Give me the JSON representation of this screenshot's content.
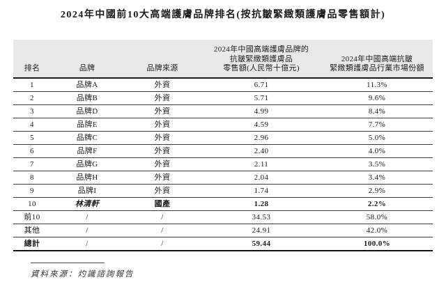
{
  "title": "2024年中國前10大高端護膚品牌排名(按抗皺緊緻類護膚品零售額計)",
  "table": {
    "headers": {
      "rank": "排名",
      "brand": "品牌",
      "origin": "品牌來源",
      "value": "2024年中國高端護膚品牌的\n抗皺緊緻類護膚品\n零售額(人民幣十億元)",
      "share": "2024年中國高端抗皺\n緊緻類護膚品行業市場份額"
    },
    "rows": [
      {
        "rank": "1",
        "brand": "品牌A",
        "origin": "外資",
        "value": "6.71",
        "share": "11.3%"
      },
      {
        "rank": "2",
        "brand": "品牌B",
        "origin": "外資",
        "value": "5.71",
        "share": "9.6%"
      },
      {
        "rank": "3",
        "brand": "品牌D",
        "origin": "外資",
        "value": "4.99",
        "share": "8.4%"
      },
      {
        "rank": "4",
        "brand": "品牌E",
        "origin": "外資",
        "value": "4.59",
        "share": "7.7%"
      },
      {
        "rank": "5",
        "brand": "品牌C",
        "origin": "外資",
        "value": "2.96",
        "share": "5.0%"
      },
      {
        "rank": "6",
        "brand": "品牌F",
        "origin": "外資",
        "value": "2.40",
        "share": "4.0%"
      },
      {
        "rank": "7",
        "brand": "品牌G",
        "origin": "外資",
        "value": "2.11",
        "share": "3.5%"
      },
      {
        "rank": "8",
        "brand": "品牌H",
        "origin": "外資",
        "value": "2.04",
        "share": "3.4%"
      },
      {
        "rank": "9",
        "brand": "品牌I",
        "origin": "外資",
        "value": "1.74",
        "share": "2.9%"
      },
      {
        "rank": "10",
        "brand": "林清軒",
        "origin": "國產",
        "value": "1.28",
        "share": "2.2%",
        "emphasis": true
      },
      {
        "rank": "前10",
        "brand": "/",
        "origin": "/",
        "value": "34.53",
        "share": "58.0%"
      },
      {
        "rank": "其他",
        "brand": "/",
        "origin": "/",
        "value": "24.91",
        "share": "42.0%"
      },
      {
        "rank": "總計",
        "brand": "/",
        "origin": "/",
        "value": "59.44",
        "share": "100.0%",
        "is_total": true
      }
    ]
  },
  "footer": {
    "source": "資料來源：灼識諮詢報告"
  }
}
